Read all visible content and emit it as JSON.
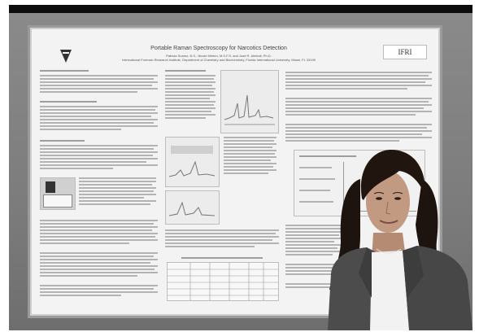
{
  "photo": {
    "description_tag": "poster-presentation-photo"
  },
  "poster": {
    "title": "Portable Raman Spectroscopy for Narcotics Detection",
    "authors": "Patricia Suarez, B.S., Nicole Melero, M.S.F.S. and José R. Almirall, Ph.D.",
    "affiliation": "International Forensic Research Institute, Department of Chemistry and Biochemistry, Florida International University, Miami, FL 33199",
    "logo_right": "IFRI"
  }
}
